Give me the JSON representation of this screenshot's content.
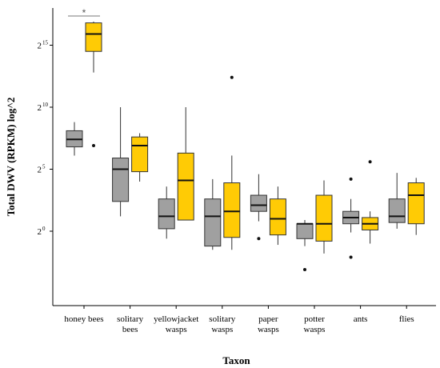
{
  "chart_data": {
    "type": "box",
    "xlabel": "Taxon",
    "ylabel": "Total DWV (RPKM) log^2",
    "y_scale": "log2",
    "ylim": [
      -6,
      18
    ],
    "yticks": [
      {
        "base": "2",
        "exp": "0",
        "value": 0
      },
      {
        "base": "2",
        "exp": "5",
        "value": 5
      },
      {
        "base": "2",
        "exp": "10",
        "value": 10
      },
      {
        "base": "2",
        "exp": "15",
        "value": 15
      }
    ],
    "categories": [
      [
        "honey bees"
      ],
      [
        "solitary",
        "bees"
      ],
      [
        "yellowjacket",
        "wasps"
      ],
      [
        "solitary",
        "wasps"
      ],
      [
        "paper",
        "wasps"
      ],
      [
        "potter",
        "wasps"
      ],
      [
        "ants"
      ],
      [
        "flies"
      ]
    ],
    "colors": {
      "grey": "#a0a0a0",
      "yellow": "#ffcb05",
      "outline": "#333333",
      "axis": "#000000"
    },
    "series": [
      {
        "color": "#a0a0a0",
        "boxes": [
          {
            "min": 6.1,
            "q1": 6.8,
            "median": 7.4,
            "q3": 8.1,
            "max": 8.8,
            "outliers": []
          },
          {
            "min": 1.2,
            "q1": 2.4,
            "median": 5.0,
            "q3": 5.9,
            "max": 10.0,
            "outliers": []
          },
          {
            "min": -0.6,
            "q1": 0.2,
            "median": 1.2,
            "q3": 2.6,
            "max": 3.6,
            "outliers": []
          },
          {
            "min": -1.5,
            "q1": -1.2,
            "median": 1.2,
            "q3": 2.6,
            "max": 4.2,
            "outliers": []
          },
          {
            "min": 0.8,
            "q1": 1.6,
            "median": 2.1,
            "q3": 2.9,
            "max": 4.6,
            "outliers": [
              -0.6
            ]
          },
          {
            "min": -1.2,
            "q1": -0.6,
            "median": 0.6,
            "q3": 0.6,
            "max": 0.9,
            "outliers": [
              -3.1
            ]
          },
          {
            "min": -0.1,
            "q1": 0.6,
            "median": 1.1,
            "q3": 1.6,
            "max": 2.6,
            "outliers": [
              4.2,
              -2.1
            ]
          },
          {
            "min": 0.2,
            "q1": 0.7,
            "median": 1.2,
            "q3": 2.6,
            "max": 4.7,
            "outliers": []
          }
        ]
      },
      {
        "color": "#ffcb05",
        "boxes": [
          {
            "min": 12.8,
            "q1": 14.5,
            "median": 15.9,
            "q3": 16.8,
            "max": 16.9,
            "outliers": [
              6.9
            ]
          },
          {
            "min": 4.0,
            "q1": 4.8,
            "median": 6.9,
            "q3": 7.6,
            "max": 7.9,
            "outliers": []
          },
          {
            "min": 0.9,
            "q1": 0.9,
            "median": 4.1,
            "q3": 6.3,
            "max": 10.0,
            "outliers": []
          },
          {
            "min": -1.5,
            "q1": -0.5,
            "median": 1.6,
            "q3": 3.9,
            "max": 6.1,
            "outliers": [
              12.4
            ]
          },
          {
            "min": -1.1,
            "q1": -0.3,
            "median": 1.0,
            "q3": 2.6,
            "max": 3.6,
            "outliers": []
          },
          {
            "min": -1.8,
            "q1": -0.8,
            "median": 0.6,
            "q3": 2.9,
            "max": 4.1,
            "outliers": []
          },
          {
            "min": -1.0,
            "q1": 0.1,
            "median": 0.6,
            "q3": 1.1,
            "max": 1.6,
            "outliers": [
              5.6
            ]
          },
          {
            "min": -0.3,
            "q1": 0.6,
            "median": 2.9,
            "q3": 3.9,
            "max": 4.3,
            "outliers": []
          }
        ]
      }
    ],
    "annotations": [
      {
        "text": "*",
        "category_index": 0
      }
    ],
    "legend": "none",
    "grid": false
  }
}
